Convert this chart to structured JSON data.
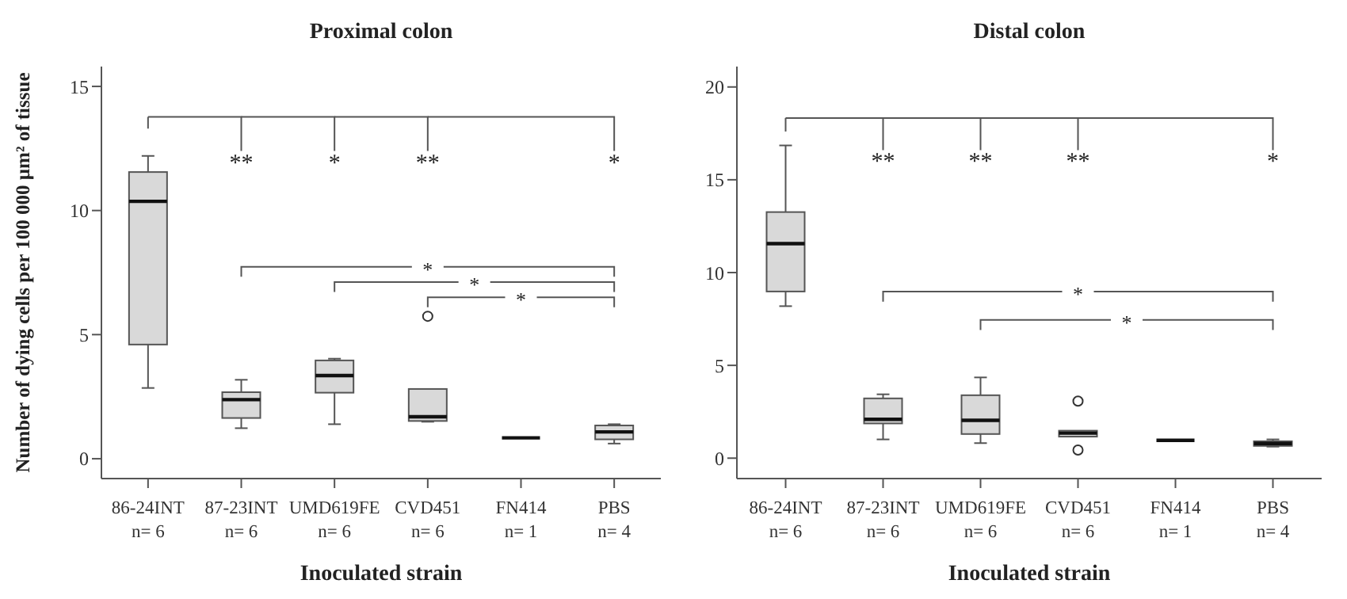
{
  "chart_data": [
    {
      "type": "box",
      "title": "Proximal colon",
      "xlabel": "Inoculated strain",
      "ylabel": "Number of dying cells per 100 000 µm² of tissue",
      "categories": [
        "86-24INT\nn= 6",
        "87-23INT\nn= 6",
        "UMD619FE\nn= 6",
        "CVD451\nn= 6",
        "FN414\nn= 1",
        "PBS\nn= 4"
      ],
      "boxes": [
        {
          "low": 2.85,
          "q1": 4.6,
          "median": 10.37,
          "q3": 11.55,
          "high": 12.2
        },
        {
          "low": 1.23,
          "q1": 1.64,
          "median": 2.38,
          "q3": 2.68,
          "high": 3.18
        },
        {
          "low": 1.39,
          "q1": 2.66,
          "median": 3.35,
          "q3": 3.96,
          "high": 4.03
        },
        {
          "low": 1.49,
          "q1": 1.52,
          "median": 1.69,
          "q3": 2.81,
          "high": 2.81,
          "outliers": [
            5.74
          ]
        },
        {
          "low": 0.84,
          "q1": 0.84,
          "median": 0.84,
          "q3": 0.84,
          "high": 0.84
        },
        {
          "low": 0.61,
          "q1": 0.78,
          "median": 1.08,
          "q3": 1.34,
          "high": 1.39
        }
      ],
      "ylim": [
        -0.8,
        15.8
      ],
      "yticks": [
        0,
        5,
        10,
        15
      ],
      "annotations": [
        "**",
        "*",
        "**",
        "*",
        "*",
        "*",
        "*"
      ]
    },
    {
      "type": "box",
      "title": "Distal colon",
      "xlabel": "Inoculated strain",
      "categories": [
        "86-24INT\nn= 6",
        "87-23INT\nn= 6",
        "UMD619FE\nn= 6",
        "CVD451\nn= 6",
        "FN414\nn= 1",
        "PBS\nn= 4"
      ],
      "boxes": [
        {
          "low": 8.19,
          "q1": 8.98,
          "median": 11.56,
          "q3": 13.26,
          "high": 16.85
        },
        {
          "low": 1.01,
          "q1": 1.87,
          "median": 2.09,
          "q3": 3.22,
          "high": 3.44
        },
        {
          "low": 0.81,
          "q1": 1.3,
          "median": 2.04,
          "q3": 3.39,
          "high": 4.35
        },
        {
          "low": 1.16,
          "q1": 1.16,
          "median": 1.35,
          "q3": 1.48,
          "high": 1.48,
          "outliers": [
            3.07,
            0.44
          ]
        },
        {
          "low": 0.96,
          "q1": 0.96,
          "median": 0.96,
          "q3": 0.96,
          "high": 0.96
        },
        {
          "low": 0.62,
          "q1": 0.66,
          "median": 0.79,
          "q3": 0.91,
          "high": 1.01
        }
      ],
      "ylim": [
        -1.1,
        21.1
      ],
      "yticks": [
        0,
        5,
        10,
        15,
        20
      ],
      "annotations": [
        "**",
        "**",
        "**",
        "*",
        "*",
        "*"
      ]
    }
  ]
}
